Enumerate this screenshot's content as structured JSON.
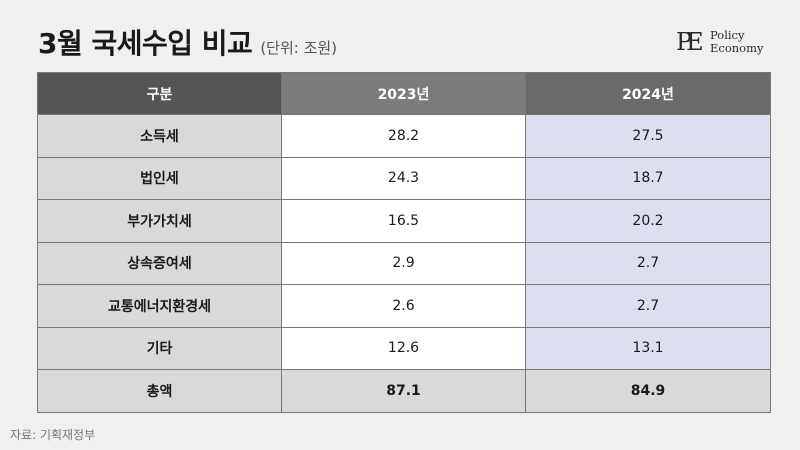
{
  "header": {
    "title": "3월 국세수입 비교",
    "unit": "(단위: 조원)"
  },
  "logo": {
    "mark": "PE",
    "line1": "Policy",
    "line2": "Economy"
  },
  "table": {
    "columns": [
      "구분",
      "2023년",
      "2024년"
    ],
    "rows": [
      {
        "label": "소득세",
        "v2023": "28.2",
        "v2024": "27.5"
      },
      {
        "label": "법인세",
        "v2023": "24.3",
        "v2024": "18.7"
      },
      {
        "label": "부가가치세",
        "v2023": "16.5",
        "v2024": "20.2"
      },
      {
        "label": "상속증여세",
        "v2023": "2.9",
        "v2024": "2.7"
      },
      {
        "label": "교통에너지환경세",
        "v2023": "2.6",
        "v2024": "2.7"
      },
      {
        "label": "기타",
        "v2023": "12.6",
        "v2024": "13.1"
      },
      {
        "label": "총액",
        "v2023": "87.1",
        "v2024": "84.9"
      }
    ]
  },
  "footer": {
    "source": "자료: 기획재정부"
  },
  "colors": {
    "header_dark": "#555555",
    "header_mid": "#7c7c7c",
    "label_bg": "#d9d9d9",
    "col2024_bg": "#dcdfee"
  }
}
